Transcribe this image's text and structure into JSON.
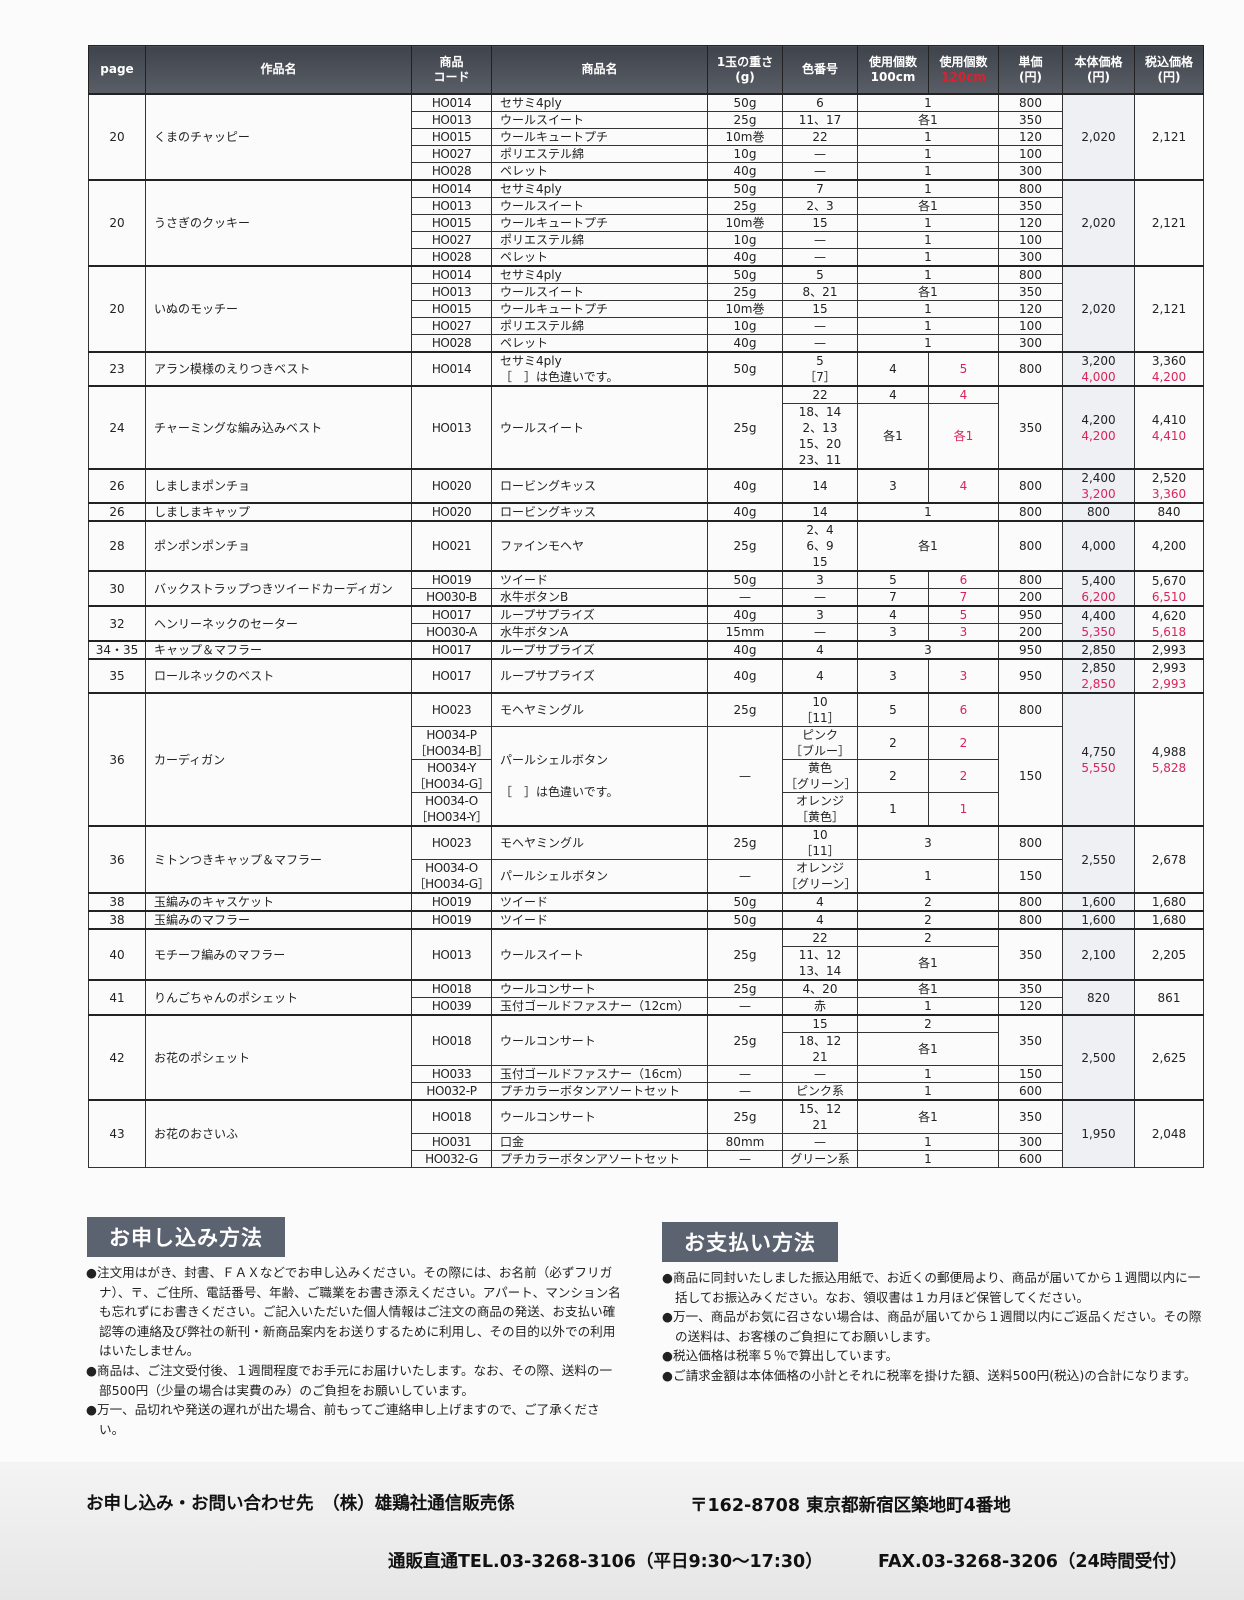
{
  "headers": {
    "page": "page",
    "work": "作品名",
    "code": "商品\nコード",
    "product": "商品名",
    "weight": "1玉の重さ\n(g)",
    "color": "色番号",
    "use100": "使用個数\n100cm",
    "use120_top": "使用個数",
    "use120_bottom": "120cm",
    "unit": "単価\n(円)",
    "base": "本体価格\n(円)",
    "tax": "税込価格\n(円)"
  },
  "rows": [
    {
      "first": true,
      "page": {
        "t": "20",
        "rs": 5
      },
      "work": {
        "t": "くまのチャッピー",
        "rs": 5
      },
      "code": "HO014",
      "product": "セサミ4ply",
      "weight": "50g",
      "color": "6",
      "use100": {
        "t": "1",
        "cs": 2
      },
      "unit": "800",
      "base": {
        "t": "2,020",
        "rs": 5
      },
      "tax": {
        "t": "2,121",
        "rs": 5
      }
    },
    {
      "code": "HO013",
      "product": "ウールスイート",
      "weight": "25g",
      "color": "11、17",
      "use100": {
        "t": "各1",
        "cs": 2
      },
      "unit": "350"
    },
    {
      "code": "HO015",
      "product": "ウールキュートプチ",
      "weight": "10m巻",
      "color": "22",
      "use100": {
        "t": "1",
        "cs": 2
      },
      "unit": "120"
    },
    {
      "code": "HO027",
      "product": "ポリエステル綿",
      "weight": "10g",
      "color": "—",
      "use100": {
        "t": "1",
        "cs": 2
      },
      "unit": "100"
    },
    {
      "code": "HO028",
      "product": "ペレット",
      "weight": "40g",
      "color": "—",
      "use100": {
        "t": "1",
        "cs": 2
      },
      "unit": "300"
    },
    {
      "first": true,
      "page": {
        "t": "20",
        "rs": 5
      },
      "work": {
        "t": "うさぎのクッキー",
        "rs": 5
      },
      "code": "HO014",
      "product": "セサミ4ply",
      "weight": "50g",
      "color": "7",
      "use100": {
        "t": "1",
        "cs": 2
      },
      "unit": "800",
      "base": {
        "t": "2,020",
        "rs": 5
      },
      "tax": {
        "t": "2,121",
        "rs": 5
      }
    },
    {
      "code": "HO013",
      "product": "ウールスイート",
      "weight": "25g",
      "color": "2、3",
      "use100": {
        "t": "各1",
        "cs": 2
      },
      "unit": "350"
    },
    {
      "code": "HO015",
      "product": "ウールキュートプチ",
      "weight": "10m巻",
      "color": "15",
      "use100": {
        "t": "1",
        "cs": 2
      },
      "unit": "120"
    },
    {
      "code": "HO027",
      "product": "ポリエステル綿",
      "weight": "10g",
      "color": "—",
      "use100": {
        "t": "1",
        "cs": 2
      },
      "unit": "100"
    },
    {
      "code": "HO028",
      "product": "ペレット",
      "weight": "40g",
      "color": "—",
      "use100": {
        "t": "1",
        "cs": 2
      },
      "unit": "300"
    },
    {
      "first": true,
      "page": {
        "t": "20",
        "rs": 5
      },
      "work": {
        "t": "いぬのモッチー",
        "rs": 5
      },
      "code": "HO014",
      "product": "セサミ4ply",
      "weight": "50g",
      "color": "5",
      "use100": {
        "t": "1",
        "cs": 2
      },
      "unit": "800",
      "base": {
        "t": "2,020",
        "rs": 5
      },
      "tax": {
        "t": "2,121",
        "rs": 5
      }
    },
    {
      "code": "HO013",
      "product": "ウールスイート",
      "weight": "25g",
      "color": "8、21",
      "use100": {
        "t": "各1",
        "cs": 2
      },
      "unit": "350"
    },
    {
      "code": "HO015",
      "product": "ウールキュートプチ",
      "weight": "10m巻",
      "color": "15",
      "use100": {
        "t": "1",
        "cs": 2
      },
      "unit": "120"
    },
    {
      "code": "HO027",
      "product": "ポリエステル綿",
      "weight": "10g",
      "color": "—",
      "use100": {
        "t": "1",
        "cs": 2
      },
      "unit": "100"
    },
    {
      "code": "HO028",
      "product": "ペレット",
      "weight": "40g",
      "color": "—",
      "use100": {
        "t": "1",
        "cs": 2
      },
      "unit": "300"
    },
    {
      "first": true,
      "page": "23",
      "work": "アラン模様のえりつきベスト",
      "code": "HO014",
      "product": "セサミ4ply\n［　］は色違いです。",
      "weight": "50g",
      "color": "5\n［7］",
      "use100": "4",
      "use120": {
        "t": "5",
        "red": true
      },
      "unit": "800",
      "base": {
        "t": "3,200",
        "r": "4,000"
      },
      "tax": {
        "t": "3,360",
        "r": "4,200"
      }
    },
    {
      "first": true,
      "page": {
        "t": "24",
        "rs": 2
      },
      "work": {
        "t": "チャーミングな編み込みベスト",
        "rs": 2
      },
      "code": {
        "t": "HO013",
        "rs": 2
      },
      "product": {
        "t": "ウールスイート",
        "rs": 2
      },
      "weight": {
        "t": "25g",
        "rs": 2
      },
      "color": "22",
      "use100": "4",
      "use120": {
        "t": "4",
        "red": true
      },
      "unit": {
        "t": "350",
        "rs": 2
      },
      "base": {
        "t": "4,200",
        "r": "4,200",
        "rs": 2
      },
      "tax": {
        "t": "4,410",
        "r": "4,410",
        "rs": 2
      }
    },
    {
      "color": "18、14\n2、13\n15、20\n23、11",
      "use100": "各1",
      "use120": {
        "t": "各1",
        "red": true
      }
    },
    {
      "first": true,
      "page": "26",
      "work": "しましまポンチョ",
      "code": "HO020",
      "product": "ロービングキッス",
      "weight": "40g",
      "color": "14",
      "use100": "3",
      "use120": {
        "t": "4",
        "red": true
      },
      "unit": "800",
      "base": {
        "t": "2,400",
        "r": "3,200"
      },
      "tax": {
        "t": "2,520",
        "r": "3,360"
      }
    },
    {
      "first": true,
      "page": "26",
      "work": "しましまキャップ",
      "code": "HO020",
      "product": "ロービングキッス",
      "weight": "40g",
      "color": "14",
      "use100": {
        "t": "1",
        "cs": 2
      },
      "unit": "800",
      "base": "800",
      "tax": "840"
    },
    {
      "first": true,
      "page": "28",
      "work": "ポンポンポンチョ",
      "code": "HO021",
      "product": "ファインモヘヤ",
      "weight": "25g",
      "color": "2、4\n6、9\n15",
      "use100": {
        "t": "各1",
        "cs": 2
      },
      "unit": "800",
      "base": "4,000",
      "tax": "4,200"
    },
    {
      "first": true,
      "page": {
        "t": "30",
        "rs": 2
      },
      "work": {
        "t": "バックストラップつきツイードカーディガン",
        "rs": 2
      },
      "code": "HO019",
      "product": "ツイード",
      "weight": "50g",
      "color": "3",
      "use100": "5",
      "use120": {
        "t": "6",
        "red": true
      },
      "unit": "800",
      "base": {
        "t": "5,400",
        "r": "6,200",
        "rs": 2
      },
      "tax": {
        "t": "5,670",
        "r": "6,510",
        "rs": 2
      }
    },
    {
      "code": "HO030-B",
      "product": "水牛ボタンB",
      "weight": "—",
      "color": "—",
      "use100": "7",
      "use120": {
        "t": "7",
        "red": true
      },
      "unit": "200"
    },
    {
      "first": true,
      "page": {
        "t": "32",
        "rs": 2
      },
      "work": {
        "t": "ヘンリーネックのセーター",
        "rs": 2
      },
      "code": "HO017",
      "product": "ループサプライズ",
      "weight": "40g",
      "color": "3",
      "use100": "4",
      "use120": {
        "t": "5",
        "red": true
      },
      "unit": "950",
      "base": {
        "t": "4,400",
        "r": "5,350",
        "rs": 2
      },
      "tax": {
        "t": "4,620",
        "r": "5,618",
        "rs": 2
      }
    },
    {
      "code": "HO030-A",
      "product": "水牛ボタンA",
      "weight": "15mm",
      "color": "—",
      "use100": "3",
      "use120": {
        "t": "3",
        "red": true
      },
      "unit": "200"
    },
    {
      "first": true,
      "page": "34・35",
      "work": "キャップ＆マフラー",
      "code": "HO017",
      "product": "ループサプライズ",
      "weight": "40g",
      "color": "4",
      "use100": {
        "t": "3",
        "cs": 2
      },
      "unit": "950",
      "base": "2,850",
      "tax": "2,993"
    },
    {
      "first": true,
      "page": "35",
      "work": "ロールネックのベスト",
      "code": "HO017",
      "product": "ループサプライズ",
      "weight": "40g",
      "color": "4",
      "use100": "3",
      "use120": {
        "t": "3",
        "red": true
      },
      "unit": "950",
      "base": {
        "t": "2,850",
        "r": "2,850"
      },
      "tax": {
        "t": "2,993",
        "r": "2,993"
      }
    },
    {
      "first": true,
      "page": {
        "t": "36",
        "rs": 4
      },
      "work": {
        "t": "カーディガン",
        "rs": 4
      },
      "code": "HO023",
      "product": "モヘヤミングル",
      "weight": "25g",
      "color": "10\n［11］",
      "use100": "5",
      "use120": {
        "t": "6",
        "red": true
      },
      "unit": "800",
      "base": {
        "t": "4,750",
        "r": "5,550",
        "rs": 4
      },
      "tax": {
        "t": "4,988",
        "r": "5,828",
        "rs": 4
      }
    },
    {
      "code": "HO034-P\n［HO034-B］",
      "product": {
        "t": "パールシェルボタン\n\n［　］は色違いです。",
        "rs": 3
      },
      "weight": {
        "t": "—",
        "rs": 3
      },
      "color": "ピンク\n［ブルー］",
      "use100": "2",
      "use120": {
        "t": "2",
        "red": true
      },
      "unit": {
        "t": "150",
        "rs": 3
      }
    },
    {
      "code": "HO034-Y\n［HO034-G］",
      "color": "黄色\n［グリーン］",
      "use100": "2",
      "use120": {
        "t": "2",
        "red": true
      }
    },
    {
      "code": "HO034-O\n［HO034-Y］",
      "color": "オレンジ\n［黄色］",
      "use100": "1",
      "use120": {
        "t": "1",
        "red": true
      }
    },
    {
      "first": true,
      "page": {
        "t": "36",
        "rs": 2
      },
      "work": {
        "t": "ミトンつきキャップ＆マフラー",
        "rs": 2
      },
      "code": "HO023",
      "product": "モヘヤミングル",
      "weight": "25g",
      "color": "10\n［11］",
      "use100": {
        "t": "3",
        "cs": 2
      },
      "unit": "800",
      "base": {
        "t": "2,550",
        "rs": 2
      },
      "tax": {
        "t": "2,678",
        "rs": 2
      }
    },
    {
      "code": "HO034-O\n［HO034-G］",
      "product": "パールシェルボタン",
      "weight": "—",
      "color": "オレンジ\n［グリーン］",
      "use100": {
        "t": "1",
        "cs": 2
      },
      "unit": "150"
    },
    {
      "first": true,
      "page": "38",
      "work": "玉編みのキャスケット",
      "code": "HO019",
      "product": "ツイード",
      "weight": "50g",
      "color": "4",
      "use100": {
        "t": "2",
        "cs": 2
      },
      "unit": "800",
      "base": "1,600",
      "tax": "1,680"
    },
    {
      "first": true,
      "page": "38",
      "work": "玉編みのマフラー",
      "code": "HO019",
      "product": "ツイード",
      "weight": "50g",
      "color": "4",
      "use100": {
        "t": "2",
        "cs": 2
      },
      "unit": "800",
      "base": "1,600",
      "tax": "1,680"
    },
    {
      "first": true,
      "page": {
        "t": "40",
        "rs": 2
      },
      "work": {
        "t": "モチーフ編みのマフラー",
        "rs": 2
      },
      "code": {
        "t": "HO013",
        "rs": 2
      },
      "product": {
        "t": "ウールスイート",
        "rs": 2
      },
      "weight": {
        "t": "25g",
        "rs": 2
      },
      "color": "22",
      "use100": {
        "t": "2",
        "cs": 2
      },
      "unit": {
        "t": "350",
        "rs": 2
      },
      "base": {
        "t": "2,100",
        "rs": 2
      },
      "tax": {
        "t": "2,205",
        "rs": 2
      }
    },
    {
      "color": "11、12\n13、14",
      "use100": {
        "t": "各1",
        "cs": 2
      }
    },
    {
      "first": true,
      "page": {
        "t": "41",
        "rs": 2
      },
      "work": {
        "t": "りんごちゃんのポシェット",
        "rs": 2
      },
      "code": "HO018",
      "product": "ウールコンサート",
      "weight": "25g",
      "color": "4、20",
      "use100": {
        "t": "各1",
        "cs": 2
      },
      "unit": "350",
      "base": {
        "t": "820",
        "rs": 2
      },
      "tax": {
        "t": "861",
        "rs": 2
      }
    },
    {
      "code": "HO039",
      "product": "玉付ゴールドファスナー（12cm）",
      "weight": "—",
      "color": "赤",
      "use100": {
        "t": "1",
        "cs": 2
      },
      "unit": "120"
    },
    {
      "first": true,
      "page": {
        "t": "42",
        "rs": 4
      },
      "work": {
        "t": "お花のポシェット",
        "rs": 4
      },
      "code": {
        "t": "HO018",
        "rs": 2
      },
      "product": {
        "t": "ウールコンサート",
        "rs": 2
      },
      "weight": {
        "t": "25g",
        "rs": 2
      },
      "color": "15",
      "use100": {
        "t": "2",
        "cs": 2
      },
      "unit": {
        "t": "350",
        "rs": 2
      },
      "base": {
        "t": "2,500",
        "rs": 4
      },
      "tax": {
        "t": "2,625",
        "rs": 4
      }
    },
    {
      "color": "18、12\n21",
      "use100": {
        "t": "各1",
        "cs": 2
      }
    },
    {
      "code": "HO033",
      "product": "玉付ゴールドファスナー（16cm）",
      "weight": "—",
      "color": "—",
      "use100": {
        "t": "1",
        "cs": 2
      },
      "unit": "150"
    },
    {
      "code": "HO032-P",
      "product": "プチカラーボタンアソートセット",
      "weight": "—",
      "color": "ピンク系",
      "use100": {
        "t": "1",
        "cs": 2
      },
      "unit": "600"
    },
    {
      "first": true,
      "page": {
        "t": "43",
        "rs": 3
      },
      "work": {
        "t": "お花のおさいふ",
        "rs": 3
      },
      "code": "HO018",
      "product": "ウールコンサート",
      "weight": "25g",
      "color": "15、12\n21",
      "use100": {
        "t": "各1",
        "cs": 2
      },
      "unit": "350",
      "base": {
        "t": "1,950",
        "rs": 3
      },
      "tax": {
        "t": "2,048",
        "rs": 3
      }
    },
    {
      "code": "HO031",
      "product": "口金",
      "weight": "80mm",
      "color": "—",
      "use100": {
        "t": "1",
        "cs": 2
      },
      "unit": "300"
    },
    {
      "code": "HO032-G",
      "product": "プチカラーボタンアソートセット",
      "weight": "—",
      "color": "グリーン系",
      "use100": {
        "t": "1",
        "cs": 2
      },
      "unit": "600"
    }
  ],
  "order": {
    "title": "お申し込み方法",
    "items": [
      "●注文用はがき、封書、ＦＡＸなどでお申し込みください。その際には、お名前（必ずフリガナ）、〒、ご住所、電話番号、年齢、ご職業をお書き添えください。アパート、マンション名も忘れずにお書きください。ご記入いただいた個人情報はご注文の商品の発送、お支払い確認等の連絡及び弊社の新刊・新商品案内をお送りするために利用し、その目的以外での利用はいたしません。",
      "●商品は、ご注文受付後、１週間程度でお手元にお届けいたします。なお、その際、送料の一部500円（少量の場合は実費のみ）のご負担をお願いしています。",
      "●万一、品切れや発送の遅れが出た場合、前もってご連絡申し上げますので、ご了承ください。"
    ]
  },
  "payment": {
    "title": "お支払い方法",
    "items": [
      "●商品に同封いたしました振込用紙で、お近くの郵便局より、商品が届いてから１週間以内に一括してお振込みください。なお、領収書は１カ月ほど保管してください。",
      "●万一、商品がお気に召さない場合は、商品が届いてから１週間以内にご返品ください。その際の送料は、お客様のご負担にてお願いします。",
      "●税込価格は税率５％で算出しています。",
      "●ご請求金額は本体価格の小計とそれに税率を掛けた額、送料500円(税込)の合計になります。"
    ]
  },
  "footer": {
    "contact": "お申し込み・お問い合わせ先　（株）雄鶏社通信販売係",
    "address": "〒162-8708  東京都新宿区築地町4番地",
    "tel": "通販直通TEL.03-3268-3106（平日9:30〜17:30）",
    "fax": "FAX.03-3268-3206（24時間受付）"
  },
  "colors": {
    "header_bg": "#4a4e56",
    "accent_red": "#d8245a",
    "section_bg": "#5b6270"
  }
}
